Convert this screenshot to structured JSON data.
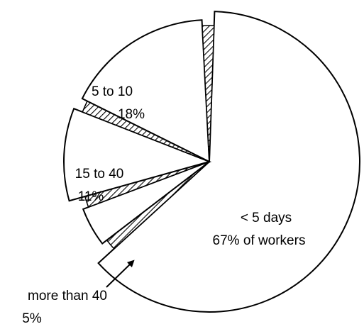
{
  "chart_data": {
    "type": "pie",
    "categories": [
      "< 5 days",
      "more than 40",
      "15 to 40",
      "5 to 10"
    ],
    "values": [
      67,
      5,
      11,
      18
    ],
    "value_labels": [
      "67% of workers",
      "5%",
      "11%",
      "18%"
    ]
  }
}
